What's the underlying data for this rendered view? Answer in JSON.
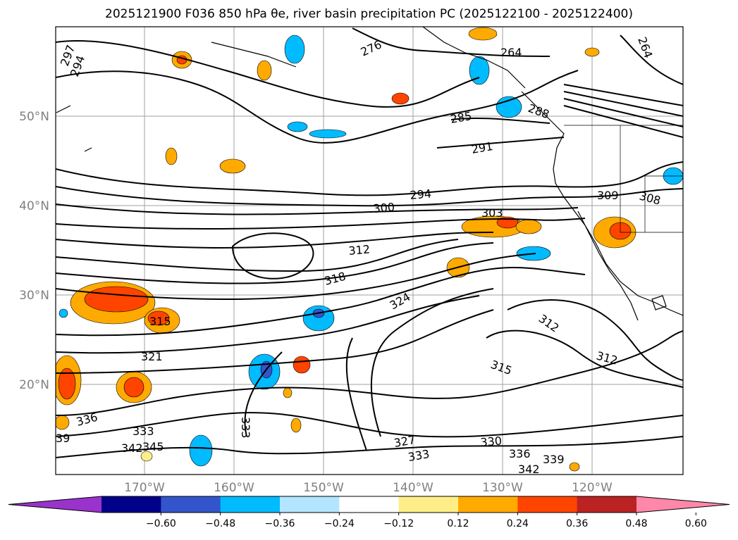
{
  "title": "2025121900 F036 850 hPa θe, river basin precipitation PC (2025122100 - 2025122400)",
  "map": {
    "lon_ticks": [
      "170°W",
      "160°W",
      "150°W",
      "140°W",
      "130°W",
      "120°W"
    ],
    "lat_ticks": [
      "50°N",
      "40°N",
      "30°N",
      "20°N"
    ],
    "contour_labels": [
      "297",
      "294",
      "276",
      "264",
      "264",
      "285",
      "288",
      "291",
      "294",
      "300",
      "303",
      "309",
      "308",
      "312",
      "318",
      "324",
      "312",
      "312",
      "315",
      "315",
      "321",
      "336",
      "333",
      "333",
      "342",
      "345",
      "327",
      "330",
      "333",
      "336",
      "339",
      "342",
      "39"
    ]
  },
  "colorbar": {
    "colors": [
      "#9933cc",
      "#000088",
      "#3355cc",
      "#00bbff",
      "#b3e5ff",
      "#ffffff",
      "#ffee88",
      "#ffaa00",
      "#ff4400",
      "#bb2222",
      "#ff88aa"
    ],
    "tick_labels": [
      "−0.60",
      "−0.48",
      "−0.36",
      "−0.24",
      "−0.12",
      "0.12",
      "0.24",
      "0.36",
      "0.48",
      "0.60"
    ]
  }
}
